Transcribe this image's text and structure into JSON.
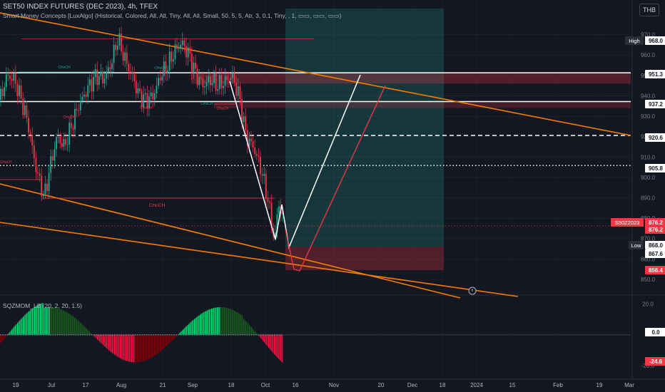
{
  "header": {
    "symbol_line": "SET50 INDEX FUTURES (DEC 2023), 4h, TFEX",
    "indicator_line": "Smart Money Concepts [LuxAlgo] (Historical, Colored, All, All, Tiny, All, All, Small, 50, 5, 5, Atr, 3, 0.1, Tiny, , 1, ▭▭, ▭▭, ▭▭)",
    "oscillator_line": "SQZMOM_LB (20, 2, 20, 1.5)",
    "currency": "THB"
  },
  "colors": {
    "up": "#22ab94",
    "down": "#f23645",
    "orange": "#f57c00",
    "white": "#ffffff",
    "mom_up_strong": "#00e676",
    "mom_up_weak": "#1b5e20",
    "mom_down_strong": "#ff1744",
    "mom_down_weak": "#8b0000"
  },
  "chart_data": [
    {
      "type": "candlestick",
      "timeframe": "4h",
      "ylim": [
        843,
        980
      ],
      "price_axis_ticks": [
        850.0,
        860.0,
        870.0,
        880.0,
        890.0,
        900.0,
        910.0,
        920.0,
        930.0,
        940.0,
        950.0,
        960.0,
        970.0
      ],
      "time_axis_labels": [
        "19",
        "Jul",
        "17",
        "Aug",
        "21",
        "Sep",
        "18",
        "Oct",
        "16",
        "Nov",
        "20",
        "Dec",
        "18",
        "2024",
        "15",
        "Feb",
        "19",
        "Mar"
      ],
      "price_path": [
        [
          0,
          938
        ],
        [
          10,
          950
        ],
        [
          20,
          948
        ],
        [
          30,
          938
        ],
        [
          40,
          925
        ],
        [
          50,
          905
        ],
        [
          62,
          890
        ],
        [
          70,
          905
        ],
        [
          80,
          920
        ],
        [
          90,
          915
        ],
        [
          100,
          925
        ],
        [
          110,
          935
        ],
        [
          125,
          945
        ],
        [
          135,
          950
        ],
        [
          145,
          948
        ],
        [
          155,
          955
        ],
        [
          165,
          968
        ],
        [
          175,
          958
        ],
        [
          185,
          950
        ],
        [
          195,
          940
        ],
        [
          205,
          938
        ],
        [
          215,
          940
        ],
        [
          225,
          950
        ],
        [
          235,
          955
        ],
        [
          245,
          962
        ],
        [
          255,
          966
        ],
        [
          265,
          960
        ],
        [
          275,
          950
        ],
        [
          285,
          945
        ],
        [
          295,
          948
        ],
        [
          305,
          945
        ],
        [
          315,
          947
        ],
        [
          325,
          950
        ],
        [
          335,
          940
        ],
        [
          345,
          920
        ],
        [
          355,
          915
        ],
        [
          365,
          905
        ],
        [
          375,
          890
        ],
        [
          385,
          868
        ],
        [
          390,
          888
        ],
        [
          398,
          878
        ],
        [
          400,
          870
        ]
      ],
      "price_labels": [
        {
          "text": "High",
          "value": "968.0"
        },
        {
          "text": "",
          "value": "951.3"
        },
        {
          "text": "",
          "value": "937.2"
        },
        {
          "text": "",
          "value": "920.6"
        },
        {
          "text": "",
          "value": "905.8"
        },
        {
          "text": "S50Z2023",
          "value": "876.2"
        },
        {
          "text": "",
          "value": "876.2"
        },
        {
          "text": "Low",
          "value": "868.0"
        },
        {
          "text": "",
          "value": "867.6"
        },
        {
          "text": "",
          "value": "856.4"
        }
      ],
      "horizontal_levels": [
        {
          "value": 951.3,
          "style": "solid",
          "color": "#ffffff"
        },
        {
          "value": 937.2,
          "style": "solid",
          "color": "#ffffff"
        },
        {
          "value": 920.6,
          "style": "dashed",
          "color": "#ffffff"
        },
        {
          "value": 905.8,
          "style": "dotted",
          "color": "#ffffff"
        }
      ],
      "structure_labels": [
        "CHoCH",
        "CHoCH",
        "CHoCH",
        "CHoCH",
        "CHoCH",
        "CHoCH",
        "CHoCH",
        "CHoCH"
      ]
    },
    {
      "type": "bar",
      "name": "SQZMOM_LB",
      "ylim": [
        -28,
        24
      ],
      "axis_ticks": [
        "20.0",
        "-20.0"
      ],
      "current_value_labels": [
        "0.0",
        "-24.6"
      ]
    }
  ]
}
